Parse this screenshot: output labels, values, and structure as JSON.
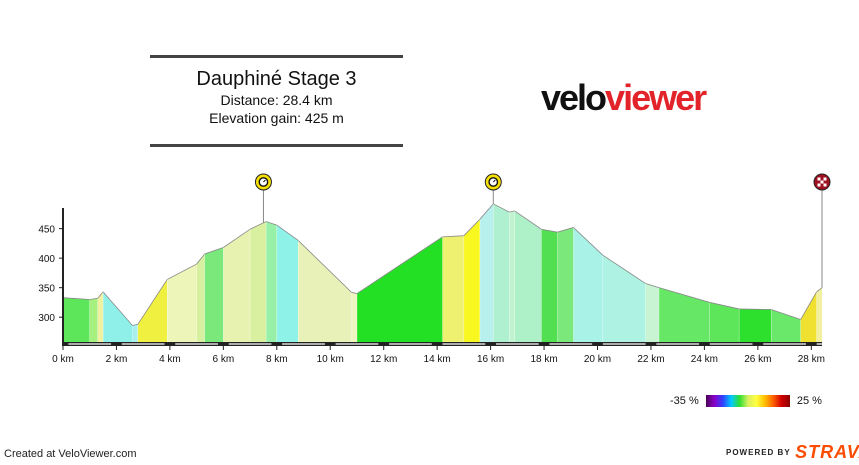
{
  "title_box": {
    "title": "Dauphiné Stage 3",
    "distance": "Distance: 28.4 km",
    "elevation_gain": "Elevation gain: 425 m"
  },
  "logo": {
    "part1": "velo",
    "part2": "viewer"
  },
  "legend": {
    "min_label": "-35 %",
    "max_label": "25 %"
  },
  "footer": {
    "created": "Created at VeloViewer.com",
    "powered_by": "POWERED BY",
    "strava": "STRAVA"
  },
  "colors": {
    "axis": "#222222",
    "strava": "#fc4c02",
    "brand_red": "#e2242a"
  },
  "chart_data": {
    "type": "area",
    "xlabel": "",
    "ylabel": "",
    "xlim": [
      0,
      28.4
    ],
    "ylim": [
      258,
      490
    ],
    "x_ticks": [
      0,
      2,
      4,
      6,
      8,
      10,
      12,
      14,
      16,
      18,
      20,
      22,
      24,
      26,
      28
    ],
    "x_tick_labels": [
      "0 km",
      "2 km",
      "4 km",
      "6 km",
      "8 km",
      "10 km",
      "12 km",
      "14 km",
      "16 km",
      "18 km",
      "20 km",
      "22 km",
      "24 km",
      "26 km",
      "28 km"
    ],
    "y_ticks": [
      300,
      350,
      400,
      450
    ],
    "y_tick_labels": [
      "300",
      "350",
      "400",
      "450"
    ],
    "markers": [
      {
        "name": "climb-marker-1",
        "km": 7.5,
        "icon": "stopwatch-icon"
      },
      {
        "name": "climb-marker-2",
        "km": 16.1,
        "icon": "stopwatch-icon"
      },
      {
        "name": "finish-marker",
        "km": 28.4,
        "icon": "checkered-flag-icon"
      }
    ],
    "profile": [
      {
        "x": 0.0,
        "y": 333
      },
      {
        "x": 1.0,
        "y": 330
      },
      {
        "x": 1.3,
        "y": 332
      },
      {
        "x": 1.5,
        "y": 343
      },
      {
        "x": 2.6,
        "y": 286
      },
      {
        "x": 2.8,
        "y": 288
      },
      {
        "x": 3.9,
        "y": 364
      },
      {
        "x": 5.0,
        "y": 390
      },
      {
        "x": 5.3,
        "y": 407
      },
      {
        "x": 6.0,
        "y": 418
      },
      {
        "x": 7.0,
        "y": 449
      },
      {
        "x": 7.6,
        "y": 462
      },
      {
        "x": 8.0,
        "y": 456
      },
      {
        "x": 8.8,
        "y": 430
      },
      {
        "x": 10.8,
        "y": 342
      },
      {
        "x": 11.0,
        "y": 340
      },
      {
        "x": 14.2,
        "y": 436
      },
      {
        "x": 15.0,
        "y": 438
      },
      {
        "x": 15.6,
        "y": 466
      },
      {
        "x": 16.1,
        "y": 492
      },
      {
        "x": 16.7,
        "y": 478
      },
      {
        "x": 16.9,
        "y": 480
      },
      {
        "x": 17.9,
        "y": 449
      },
      {
        "x": 18.5,
        "y": 444
      },
      {
        "x": 19.1,
        "y": 452
      },
      {
        "x": 20.2,
        "y": 405
      },
      {
        "x": 21.8,
        "y": 357
      },
      {
        "x": 22.3,
        "y": 350
      },
      {
        "x": 24.2,
        "y": 325
      },
      {
        "x": 25.3,
        "y": 314
      },
      {
        "x": 26.5,
        "y": 313
      },
      {
        "x": 27.6,
        "y": 296
      },
      {
        "x": 28.2,
        "y": 343
      },
      {
        "x": 28.4,
        "y": 350
      }
    ],
    "segment_colors": [
      "#5ee65a",
      "#a6f080",
      "#f0f0a0",
      "#8ef0e8",
      "#a8f0f0",
      "#f0f040",
      "#eef5b8",
      "#d6f0a0",
      "#7ae87a",
      "#e8f2b0",
      "#d8f0a0",
      "#96f0a8",
      "#8ef2e8",
      "#e8f2b8",
      "#eef5c0",
      "#24e024",
      "#eef070",
      "#f8f820",
      "#b8f0ee",
      "#aef0d0",
      "#c0f4d0",
      "#aef0c8",
      "#52e052",
      "#7ae87a",
      "#a8f2e8",
      "#aef2e4",
      "#c8f4d4",
      "#66e866",
      "#5ee65a",
      "#2ee02e",
      "#6ae86a",
      "#f0e030",
      "#f0f0a0"
    ]
  }
}
